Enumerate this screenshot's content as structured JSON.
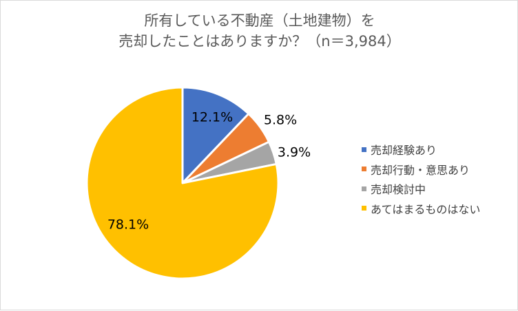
{
  "chart_data": {
    "type": "pie",
    "title_lines": [
      "所有している不動産（土地建物）を",
      "売却したことはありますか？（n＝3,984）"
    ],
    "slices": [
      {
        "name": "売却経験あり",
        "value": 12.1,
        "label": "12.1%",
        "color": "#4472c4"
      },
      {
        "name": "売却行動・意思あり",
        "value": 5.8,
        "label": "5.8%",
        "color": "#ed7d31"
      },
      {
        "name": "売却検討中",
        "value": 3.9,
        "label": "3.9%",
        "color": "#a5a5a5"
      },
      {
        "name": "あてはまるものはない",
        "value": 78.1,
        "label": "78.1%",
        "color": "#ffc000"
      }
    ],
    "start_angle_deg": 0,
    "direction": "clockwise",
    "legend_position": "right"
  }
}
